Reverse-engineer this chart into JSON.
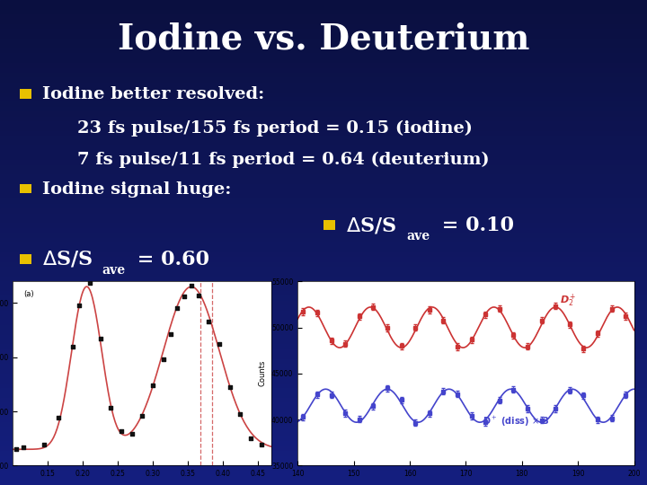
{
  "title": "Iodine vs. Deuterium",
  "bg_color": "#1a3a9c",
  "title_color": "#ffffff",
  "title_fontsize": 28,
  "bullet_fontsize": 14,
  "bullet_marker_color": "#e8c000",
  "bullet1_line1": "Iodine better resolved:",
  "bullet1_line2": "23 fs pulse/155 fs period = 0.15 (iodine)",
  "bullet1_line3": "7 fs pulse/11 fs period = 0.64 (deuterium)",
  "bullet2": "Iodine signal huge:",
  "delta_right_val": "ΔS/S",
  "delta_right_sub": "ave",
  "delta_right_num": " = 0.10",
  "delta_left_val": "ΔS/S",
  "delta_left_sub": "ave",
  "delta_left_num": " = 0.60"
}
